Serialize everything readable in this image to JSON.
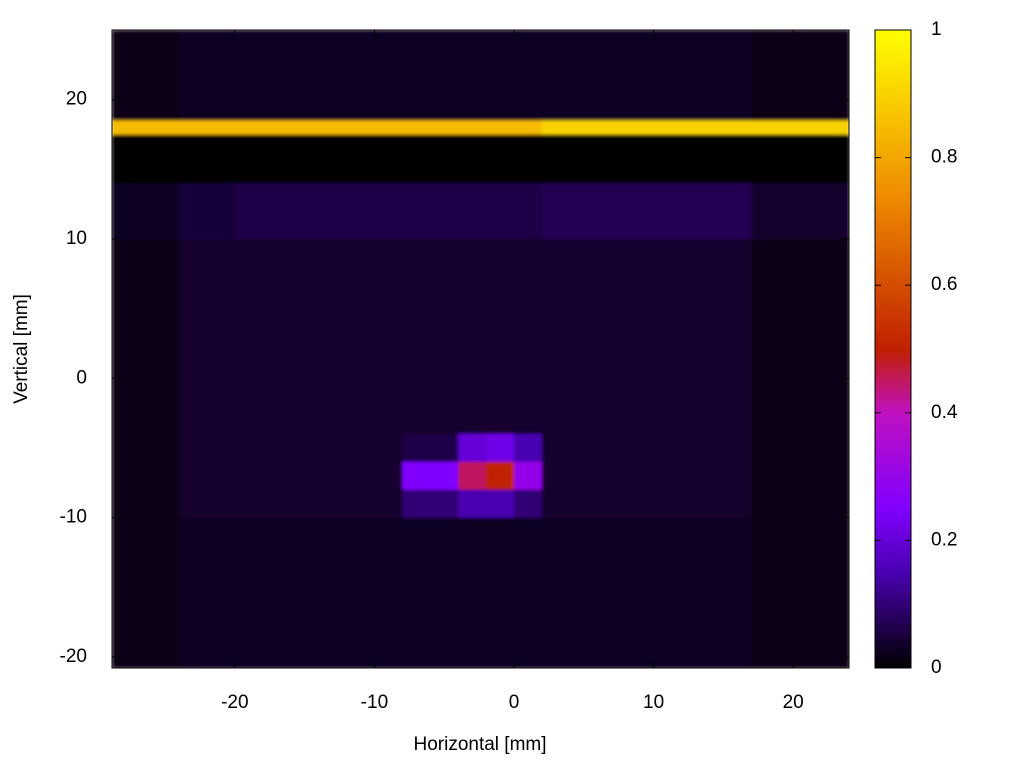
{
  "chart_data": {
    "type": "heatmap",
    "xlabel": "Horizontal [mm]",
    "ylabel": "Vertical [mm]",
    "xlim": [
      -28.8,
      24
    ],
    "ylim": [
      -20.8,
      25
    ],
    "xticks": [
      -20,
      -10,
      0,
      10,
      20
    ],
    "yticks": [
      -20,
      -10,
      0,
      10,
      20
    ],
    "clim": [
      0,
      1
    ],
    "cticks": [
      0,
      0.2,
      0.4,
      0.6,
      0.8,
      1
    ],
    "colorscale": [
      [
        0,
        "#000000"
      ],
      [
        0.15,
        "#4a00b0"
      ],
      [
        0.25,
        "#8000ff"
      ],
      [
        0.4,
        "#c010c0"
      ],
      [
        0.5,
        "#c02000"
      ],
      [
        0.75,
        "#f09000"
      ],
      [
        1,
        "#ffff00"
      ]
    ],
    "xbins": [
      -28.8,
      -24,
      -20,
      -8,
      -4,
      -2,
      0,
      2,
      17,
      24
    ],
    "ybins": [
      25,
      18.5,
      17.5,
      14,
      10,
      4,
      -4,
      -6,
      -8,
      -10,
      -20.8
    ],
    "z": [
      [
        0.02,
        0.03,
        0.03,
        0.03,
        0.03,
        0.03,
        0.03,
        0.03,
        0.02
      ],
      [
        0.85,
        0.85,
        0.85,
        0.85,
        0.85,
        0.85,
        0.85,
        0.9,
        0.9
      ],
      [
        0.0,
        0.0,
        0.0,
        0.0,
        0.0,
        0.0,
        0.0,
        0.0,
        0.0
      ],
      [
        0.03,
        0.05,
        0.06,
        0.06,
        0.06,
        0.06,
        0.06,
        0.07,
        0.04
      ],
      [
        0.02,
        0.04,
        0.04,
        0.04,
        0.04,
        0.04,
        0.04,
        0.04,
        0.02
      ],
      [
        0.02,
        0.04,
        0.04,
        0.04,
        0.04,
        0.04,
        0.04,
        0.04,
        0.02
      ],
      [
        0.02,
        0.04,
        0.04,
        0.06,
        0.2,
        0.22,
        0.15,
        0.04,
        0.02
      ],
      [
        0.02,
        0.04,
        0.04,
        0.25,
        0.45,
        0.5,
        0.3,
        0.04,
        0.02
      ],
      [
        0.02,
        0.04,
        0.04,
        0.1,
        0.15,
        0.15,
        0.1,
        0.04,
        0.02
      ],
      [
        0.02,
        0.03,
        0.03,
        0.03,
        0.03,
        0.03,
        0.03,
        0.03,
        0.02
      ]
    ]
  }
}
